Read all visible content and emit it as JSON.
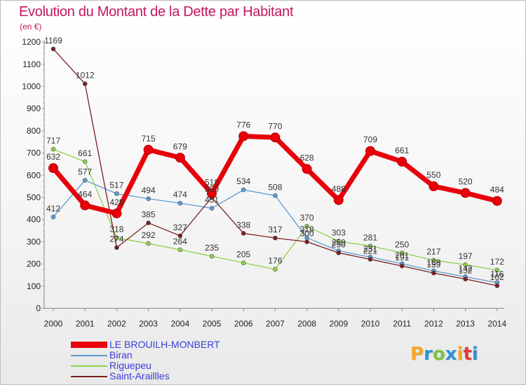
{
  "title": "Evolution du Montant de la Dette par Habitant",
  "unit": "(en €)",
  "logo": {
    "text": "Proxiti",
    "colors": [
      "#f5a623",
      "#2f8fd8",
      "#7cc242",
      "#2f8fd8",
      "#f5a623",
      "#e53935",
      "#2f8fd8"
    ]
  },
  "chart_data": {
    "type": "line",
    "title": "Evolution du Montant de la Dette par Habitant",
    "ylabel": "(en €)",
    "xlabel": "",
    "x": [
      "2000",
      "2001",
      "2002",
      "2003",
      "2004",
      "2005",
      "2006",
      "2007",
      "2008",
      "2009",
      "2010",
      "2011",
      "2012",
      "2013",
      "2014"
    ],
    "ylim": [
      0,
      1200
    ],
    "yticks": [
      0,
      100,
      200,
      300,
      400,
      500,
      600,
      700,
      800,
      900,
      1000,
      1100,
      1200
    ],
    "grid": false,
    "legend_position": "bottom-left",
    "series": [
      {
        "name": "LE BROUILH-MONBERT",
        "color": "#e8000b",
        "width": 7,
        "values": [
          632,
          464,
          428,
          715,
          679,
          518,
          776,
          770,
          628,
          488,
          709,
          661,
          550,
          520,
          484
        ]
      },
      {
        "name": "Biran",
        "color": "#5b9bd5",
        "width": 1.3,
        "values": [
          412,
          577,
          517,
          494,
          474,
          451,
          534,
          508,
          318,
          259,
          231,
          201,
          169,
          142,
          116
        ]
      },
      {
        "name": "Riguepeu",
        "color": "#8fd14f",
        "width": 1.3,
        "values": [
          717,
          661,
          318,
          292,
          264,
          235,
          205,
          176,
          370,
          303,
          281,
          250,
          217,
          197,
          172
        ]
      },
      {
        "name": "Saint-Araillés",
        "display_name": "Saint-Araillles",
        "color": "#7a1f1f",
        "width": 1.3,
        "values": [
          1169,
          1012,
          274,
          385,
          327,
          500,
          338,
          317,
          300,
          250,
          221,
          191,
          159,
          132,
          102
        ]
      }
    ]
  }
}
